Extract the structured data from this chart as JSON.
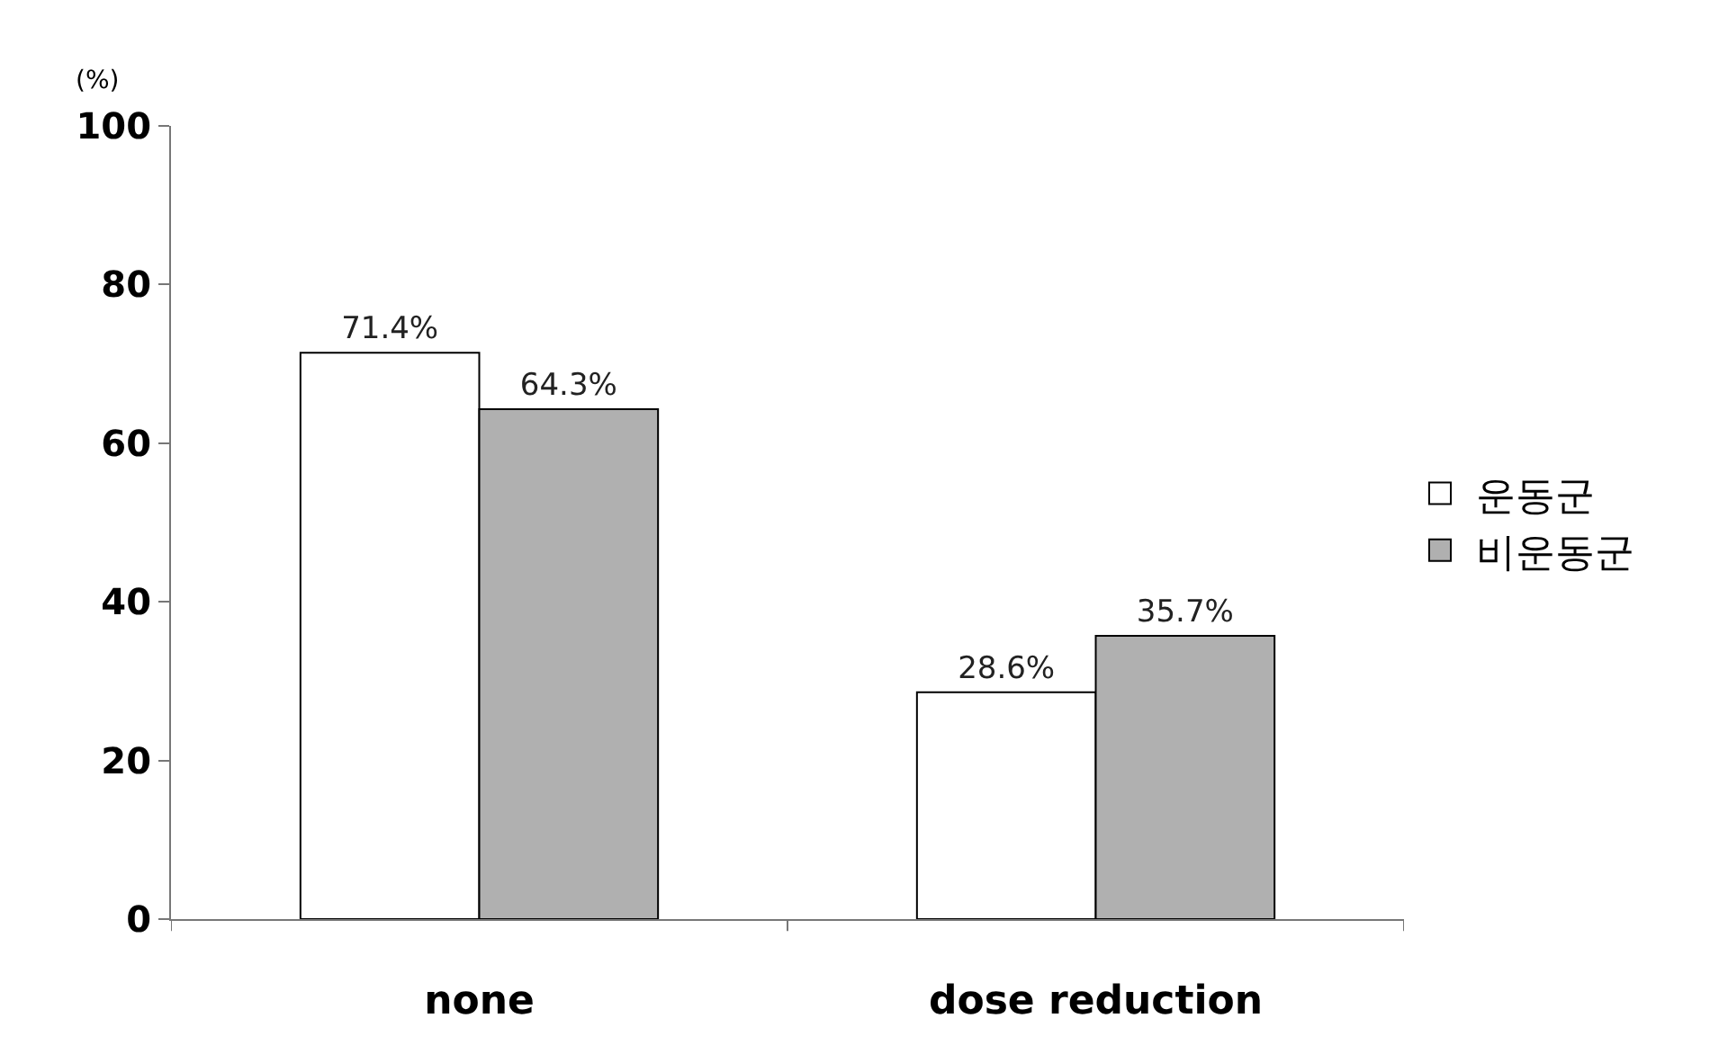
{
  "chart_data": {
    "type": "bar",
    "ylabel": "(%)",
    "categories": [
      "none",
      "dose reduction"
    ],
    "series": [
      {
        "name": "운동군",
        "color": "#ffffff",
        "values": [
          71.4,
          28.6
        ],
        "value_labels": [
          "71.4%",
          "28.6%"
        ]
      },
      {
        "name": "비운동군",
        "color": "#b0b0b0",
        "values": [
          64.3,
          35.7
        ],
        "value_labels": [
          "64.3%",
          "35.7%"
        ]
      }
    ],
    "ylim": [
      0,
      100
    ],
    "yticks": [
      0,
      20,
      40,
      60,
      80,
      100
    ],
    "legend": "right"
  }
}
